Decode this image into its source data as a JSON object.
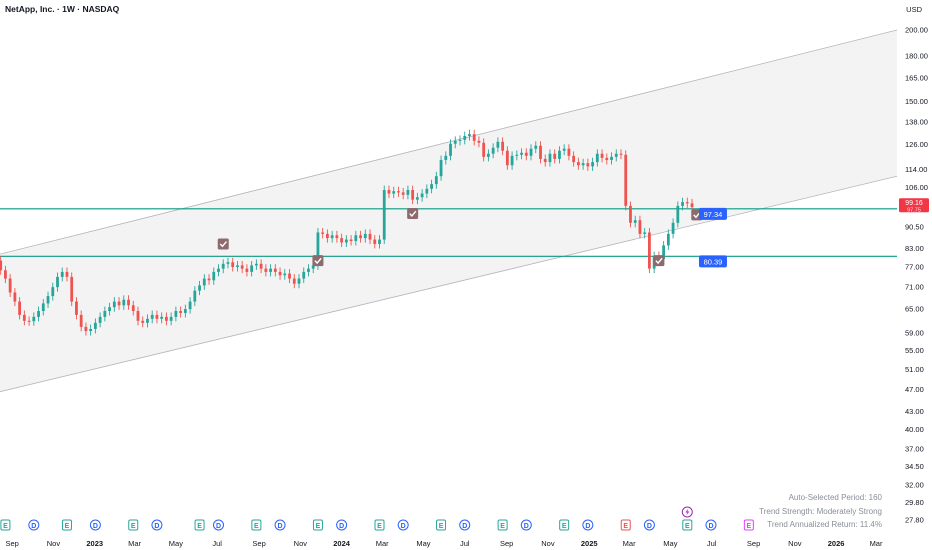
{
  "header": {
    "title": "NetApp, Inc. · 1W · NASDAQ",
    "currency": "USD"
  },
  "stats": {
    "period": "Auto-Selected Period: 160",
    "strength": "Trend Strength: Moderately Strong",
    "annual_return": "Trend Annualized Return: 11.4%"
  },
  "colors": {
    "up": "#26a69a",
    "down": "#ef5350",
    "hline": "#089981",
    "label_blue": "#2962ff",
    "price_red": "#f23645",
    "channel_fill": "#f3f3f3",
    "channel_line": "#b2b5be",
    "check_marker": "#8c6a6e"
  },
  "chart_data": {
    "type": "candlestick",
    "scale": "log",
    "y_ticks": [
      27.8,
      29.8,
      32.0,
      34.5,
      37.0,
      40.0,
      43.0,
      47.0,
      51.0,
      55.0,
      59.0,
      65.0,
      71.0,
      77.0,
      83.0,
      90.5,
      97.75,
      106.0,
      114.0,
      126.0,
      138.0,
      150.0,
      165.0,
      180.0,
      200.0
    ],
    "x_ticks": [
      {
        "label": "Sep",
        "date": "2022-09-01",
        "bold": false
      },
      {
        "label": "Nov",
        "date": "2022-11-01",
        "bold": false
      },
      {
        "label": "2023",
        "date": "2023-01-01",
        "bold": true
      },
      {
        "label": "Mar",
        "date": "2023-03-01",
        "bold": false
      },
      {
        "label": "May",
        "date": "2023-05-01",
        "bold": false
      },
      {
        "label": "Jul",
        "date": "2023-07-01",
        "bold": false
      },
      {
        "label": "Sep",
        "date": "2023-09-01",
        "bold": false
      },
      {
        "label": "Nov",
        "date": "2023-11-01",
        "bold": false
      },
      {
        "label": "2024",
        "date": "2024-01-01",
        "bold": true
      },
      {
        "label": "Mar",
        "date": "2024-03-01",
        "bold": false
      },
      {
        "label": "May",
        "date": "2024-05-01",
        "bold": false
      },
      {
        "label": "Jul",
        "date": "2024-07-01",
        "bold": false
      },
      {
        "label": "Sep",
        "date": "2024-09-01",
        "bold": false
      },
      {
        "label": "Nov",
        "date": "2024-11-01",
        "bold": false
      },
      {
        "label": "2025",
        "date": "2025-01-01",
        "bold": true
      },
      {
        "label": "Mar",
        "date": "2025-03-01",
        "bold": false
      },
      {
        "label": "May",
        "date": "2025-05-01",
        "bold": false
      },
      {
        "label": "Jul",
        "date": "2025-07-01",
        "bold": false
      },
      {
        "label": "Sep",
        "date": "2025-09-01",
        "bold": false
      },
      {
        "label": "Nov",
        "date": "2025-11-01",
        "bold": false
      },
      {
        "label": "2026",
        "date": "2026-01-01",
        "bold": true
      },
      {
        "label": "Mar",
        "date": "2026-03-01",
        "bold": false
      }
    ],
    "close_series": [
      [
        "2022-07-25",
        72.0
      ],
      [
        "2022-08-01",
        75.5
      ],
      [
        "2022-08-08",
        79.0
      ],
      [
        "2022-08-15",
        76.0
      ],
      [
        "2022-08-22",
        73.5
      ],
      [
        "2022-08-29",
        69.5
      ],
      [
        "2022-09-05",
        67.0
      ],
      [
        "2022-09-12",
        63.5
      ],
      [
        "2022-09-19",
        62.0
      ],
      [
        "2022-09-26",
        61.9
      ],
      [
        "2022-10-03",
        63.0
      ],
      [
        "2022-10-10",
        64.5
      ],
      [
        "2022-10-17",
        66.5
      ],
      [
        "2022-10-24",
        68.5
      ],
      [
        "2022-10-31",
        71.0
      ],
      [
        "2022-11-07",
        74.0
      ],
      [
        "2022-11-14",
        75.5
      ],
      [
        "2022-11-21",
        74.0
      ],
      [
        "2022-11-28",
        67.0
      ],
      [
        "2022-12-05",
        63.5
      ],
      [
        "2022-12-12",
        60.5
      ],
      [
        "2022-12-19",
        59.5
      ],
      [
        "2022-12-26",
        60.0
      ],
      [
        "2023-01-02",
        61.5
      ],
      [
        "2023-01-09",
        63.0
      ],
      [
        "2023-01-16",
        64.5
      ],
      [
        "2023-01-23",
        65.5
      ],
      [
        "2023-01-30",
        67.0
      ],
      [
        "2023-02-06",
        66.0
      ],
      [
        "2023-02-13",
        67.5
      ],
      [
        "2023-02-20",
        66.0
      ],
      [
        "2023-02-27",
        64.5
      ],
      [
        "2023-03-06",
        62.0
      ],
      [
        "2023-03-13",
        61.5
      ],
      [
        "2023-03-20",
        62.5
      ],
      [
        "2023-03-27",
        63.5
      ],
      [
        "2023-04-03",
        62.5
      ],
      [
        "2023-04-10",
        63.0
      ],
      [
        "2023-04-17",
        62.0
      ],
      [
        "2023-04-24",
        63.0
      ],
      [
        "2023-05-01",
        64.5
      ],
      [
        "2023-05-08",
        64.0
      ],
      [
        "2023-05-15",
        65.0
      ],
      [
        "2023-05-22",
        67.0
      ],
      [
        "2023-05-29",
        70.0
      ],
      [
        "2023-06-05",
        71.5
      ],
      [
        "2023-06-12",
        73.5
      ],
      [
        "2023-06-19",
        73.0
      ],
      [
        "2023-06-26",
        75.5
      ],
      [
        "2023-07-03",
        76.5
      ],
      [
        "2023-07-10",
        78.0
      ],
      [
        "2023-07-17",
        78.5
      ],
      [
        "2023-07-24",
        77.0
      ],
      [
        "2023-07-31",
        77.5
      ],
      [
        "2023-08-07",
        76.5
      ],
      [
        "2023-08-14",
        75.5
      ],
      [
        "2023-08-21",
        77.5
      ],
      [
        "2023-08-28",
        78.0
      ],
      [
        "2023-09-04",
        76.5
      ],
      [
        "2023-09-11",
        75.5
      ],
      [
        "2023-09-18",
        76.5
      ],
      [
        "2023-09-25",
        75.5
      ],
      [
        "2023-10-02",
        74.5
      ],
      [
        "2023-10-09",
        75.0
      ],
      [
        "2023-10-16",
        73.5
      ],
      [
        "2023-10-23",
        72.0
      ],
      [
        "2023-10-30",
        73.5
      ],
      [
        "2023-11-06",
        75.5
      ],
      [
        "2023-11-13",
        76.5
      ],
      [
        "2023-11-20",
        77.5
      ],
      [
        "2023-11-27",
        88.5
      ],
      [
        "2023-12-04",
        88.0
      ],
      [
        "2023-12-11",
        86.5
      ],
      [
        "2023-12-18",
        87.5
      ],
      [
        "2023-12-25",
        86.5
      ],
      [
        "2024-01-01",
        85.0
      ],
      [
        "2024-01-08",
        86.0
      ],
      [
        "2024-01-15",
        85.5
      ],
      [
        "2024-01-22",
        87.5
      ],
      [
        "2024-01-29",
        86.5
      ],
      [
        "2024-02-05",
        88.0
      ],
      [
        "2024-02-12",
        86.0
      ],
      [
        "2024-02-19",
        84.5
      ],
      [
        "2024-02-26",
        86.0
      ],
      [
        "2024-03-04",
        105.0
      ],
      [
        "2024-03-11",
        103.5
      ],
      [
        "2024-03-18",
        104.5
      ],
      [
        "2024-03-25",
        104.0
      ],
      [
        "2024-04-01",
        103.0
      ],
      [
        "2024-04-08",
        105.0
      ],
      [
        "2024-04-15",
        101.0
      ],
      [
        "2024-04-22",
        102.0
      ],
      [
        "2024-04-29",
        103.5
      ],
      [
        "2024-05-06",
        105.5
      ],
      [
        "2024-05-13",
        107.5
      ],
      [
        "2024-05-20",
        111.0
      ],
      [
        "2024-05-27",
        118.5
      ],
      [
        "2024-06-03",
        120.5
      ],
      [
        "2024-06-10",
        126.5
      ],
      [
        "2024-06-17",
        128.0
      ],
      [
        "2024-06-24",
        128.5
      ],
      [
        "2024-07-01",
        130.5
      ],
      [
        "2024-07-08",
        131.5
      ],
      [
        "2024-07-15",
        128.0
      ],
      [
        "2024-07-22",
        127.0
      ],
      [
        "2024-07-29",
        120.0
      ],
      [
        "2024-08-05",
        121.5
      ],
      [
        "2024-08-12",
        124.5
      ],
      [
        "2024-08-19",
        127.5
      ],
      [
        "2024-08-26",
        123.0
      ],
      [
        "2024-09-02",
        116.0
      ],
      [
        "2024-09-09",
        120.5
      ],
      [
        "2024-09-16",
        121.0
      ],
      [
        "2024-09-23",
        122.0
      ],
      [
        "2024-09-30",
        120.5
      ],
      [
        "2024-10-07",
        124.0
      ],
      [
        "2024-10-14",
        125.5
      ],
      [
        "2024-10-21",
        119.0
      ],
      [
        "2024-10-28",
        117.5
      ],
      [
        "2024-11-04",
        121.5
      ],
      [
        "2024-11-11",
        119.0
      ],
      [
        "2024-11-18",
        123.0
      ],
      [
        "2024-11-25",
        124.0
      ],
      [
        "2024-12-02",
        120.5
      ],
      [
        "2024-12-09",
        117.5
      ],
      [
        "2024-12-16",
        116.0
      ],
      [
        "2024-12-23",
        117.0
      ],
      [
        "2024-12-30",
        115.5
      ],
      [
        "2025-01-06",
        117.5
      ],
      [
        "2025-01-13",
        121.5
      ],
      [
        "2025-01-20",
        119.5
      ],
      [
        "2025-01-27",
        118.5
      ],
      [
        "2025-02-03",
        120.0
      ],
      [
        "2025-02-10",
        121.5
      ],
      [
        "2025-02-17",
        121.0
      ],
      [
        "2025-02-24",
        98.5
      ],
      [
        "2025-03-03",
        92.0
      ],
      [
        "2025-03-10",
        93.0
      ],
      [
        "2025-03-17",
        88.0
      ],
      [
        "2025-03-24",
        88.5
      ],
      [
        "2025-03-31",
        76.5
      ],
      [
        "2025-04-07",
        80.5
      ],
      [
        "2025-04-14",
        79.5
      ],
      [
        "2025-04-21",
        84.0
      ],
      [
        "2025-04-28",
        88.0
      ],
      [
        "2025-05-05",
        92.0
      ],
      [
        "2025-05-12",
        98.5
      ],
      [
        "2025-05-19",
        100.0
      ],
      [
        "2025-05-26",
        99.5
      ],
      [
        "2025-06-02",
        98.0
      ]
    ],
    "horizontal_lines": [
      {
        "price": 97.34,
        "label": "97.34",
        "label_date": "2025-06-30"
      },
      {
        "price": 80.39,
        "label": "80.39",
        "label_date": "2025-06-30"
      }
    ],
    "current_price": {
      "value": "99.16",
      "secondary": "97.75"
    },
    "channel": {
      "upper_start": {
        "date": "2022-07-25",
        "price": 80.0
      },
      "upper_end": {
        "date": "2026-04-01",
        "price": 200.0
      },
      "lower_start": {
        "date": "2022-07-25",
        "price": 46.0
      },
      "lower_end": {
        "date": "2026-04-01",
        "price": 111.0
      }
    },
    "check_markers": [
      {
        "date": "2022-08-01",
        "price": 84.5
      },
      {
        "date": "2023-07-10",
        "price": 84.5
      },
      {
        "date": "2023-11-27",
        "price": 79.0
      },
      {
        "date": "2024-04-15",
        "price": 95.5
      },
      {
        "date": "2025-04-14",
        "price": 79.0
      },
      {
        "date": "2025-06-09",
        "price": 95.0
      }
    ],
    "events": [
      {
        "type": "E",
        "date": "2022-08-22",
        "color": "#26a69a"
      },
      {
        "type": "D",
        "date": "2022-10-03",
        "color": "#2962ff"
      },
      {
        "type": "E",
        "date": "2022-11-21",
        "color": "#26a69a"
      },
      {
        "type": "D",
        "date": "2023-01-02",
        "color": "#2962ff"
      },
      {
        "type": "E",
        "date": "2023-02-27",
        "color": "#26a69a"
      },
      {
        "type": "D",
        "date": "2023-04-03",
        "color": "#2962ff"
      },
      {
        "type": "E",
        "date": "2023-06-05",
        "color": "#26a69a"
      },
      {
        "type": "D",
        "date": "2023-07-03",
        "color": "#2962ff"
      },
      {
        "type": "E",
        "date": "2023-08-28",
        "color": "#26a69a"
      },
      {
        "type": "D",
        "date": "2023-10-02",
        "color": "#2962ff"
      },
      {
        "type": "E",
        "date": "2023-11-27",
        "color": "#26a69a"
      },
      {
        "type": "D",
        "date": "2024-01-01",
        "color": "#2962ff"
      },
      {
        "type": "E",
        "date": "2024-02-26",
        "color": "#26a69a"
      },
      {
        "type": "D",
        "date": "2024-04-01",
        "color": "#2962ff"
      },
      {
        "type": "E",
        "date": "2024-05-27",
        "color": "#26a69a"
      },
      {
        "type": "D",
        "date": "2024-07-01",
        "color": "#2962ff"
      },
      {
        "type": "E",
        "date": "2024-08-26",
        "color": "#26a69a"
      },
      {
        "type": "D",
        "date": "2024-09-30",
        "color": "#2962ff"
      },
      {
        "type": "E",
        "date": "2024-11-25",
        "color": "#26a69a"
      },
      {
        "type": "D",
        "date": "2024-12-30",
        "color": "#2962ff"
      },
      {
        "type": "E",
        "date": "2025-02-24",
        "color": "#ef5350"
      },
      {
        "type": "D",
        "date": "2025-03-31",
        "color": "#2962ff"
      },
      {
        "type": "E",
        "date": "2025-05-26",
        "color": "#26a69a"
      },
      {
        "type": "D",
        "date": "2025-06-30",
        "color": "#2962ff"
      },
      {
        "type": "E",
        "date": "2025-08-25",
        "color": "#e040fb"
      }
    ],
    "flash_event_date": "2025-05-26"
  }
}
